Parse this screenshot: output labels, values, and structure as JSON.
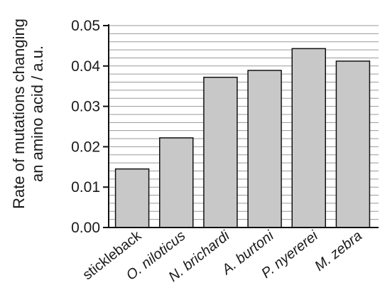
{
  "chart_data": {
    "type": "bar",
    "title": "",
    "xlabel": "",
    "ylabel_lines": [
      "Rate of mutations changing",
      "an amino acid / a.u."
    ],
    "categories": [
      "stickleback",
      "O. niloticus",
      "N. brichardi",
      "A. burtoni",
      "P. nyererei",
      "M. zebra"
    ],
    "category_italic": [
      false,
      true,
      true,
      true,
      true,
      true
    ],
    "values": [
      0.0145,
      0.0222,
      0.0372,
      0.0389,
      0.0443,
      0.0412
    ],
    "ylim": [
      0,
      0.05
    ],
    "yticks": [
      "0.00",
      "0.01",
      "0.02",
      "0.03",
      "0.04",
      "0.05"
    ],
    "grid": true,
    "grid_step": 0.002,
    "legend": "none",
    "colors": {
      "bar_fill": "#c8c8c8",
      "bar_stroke": "#111111",
      "grid": "#9a9a9a",
      "axis": "#111111"
    }
  }
}
